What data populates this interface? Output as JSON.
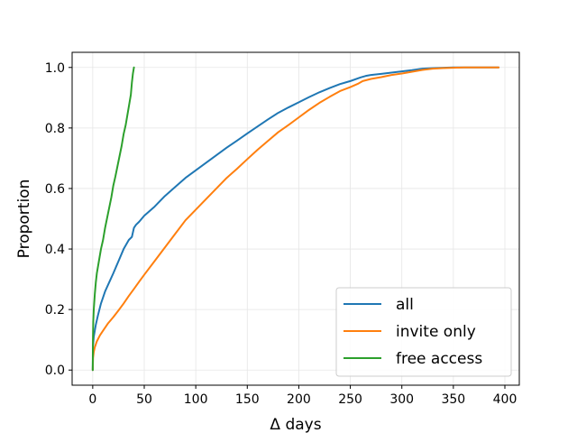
{
  "chart_data": {
    "type": "line",
    "title": "",
    "xlabel": "Δ days",
    "ylabel": "Proportion",
    "xlim": [
      -20,
      414
    ],
    "ylim": [
      -0.05,
      1.05
    ],
    "xticks": [
      0,
      50,
      100,
      150,
      200,
      250,
      300,
      350,
      400
    ],
    "yticks": [
      0.0,
      0.2,
      0.4,
      0.6,
      0.8,
      1.0
    ],
    "grid": true,
    "legend_position": "bottom-right",
    "series": [
      {
        "name": "all",
        "color": "#1f77b4",
        "x": [
          0,
          0.3,
          1,
          2,
          3,
          5,
          8,
          12,
          16,
          20,
          25,
          30,
          35,
          38,
          40,
          42,
          45,
          50,
          60,
          70,
          80,
          90,
          100,
          110,
          120,
          130,
          140,
          150,
          160,
          170,
          180,
          190,
          200,
          210,
          220,
          230,
          240,
          250,
          260,
          265,
          270,
          280,
          290,
          300,
          310,
          320,
          330,
          340,
          350,
          360,
          370,
          380,
          390,
          394
        ],
        "y": [
          0.0,
          0.08,
          0.11,
          0.13,
          0.15,
          0.18,
          0.22,
          0.26,
          0.29,
          0.32,
          0.36,
          0.4,
          0.43,
          0.44,
          0.47,
          0.48,
          0.49,
          0.51,
          0.54,
          0.575,
          0.605,
          0.635,
          0.66,
          0.685,
          0.71,
          0.735,
          0.758,
          0.782,
          0.805,
          0.828,
          0.85,
          0.868,
          0.885,
          0.902,
          0.918,
          0.932,
          0.945,
          0.955,
          0.967,
          0.972,
          0.975,
          0.979,
          0.983,
          0.987,
          0.991,
          0.996,
          0.998,
          0.999,
          1.0,
          1.0,
          1.0,
          1.0,
          1.0,
          1.0
        ]
      },
      {
        "name": "invite only",
        "color": "#ff7f0e",
        "x": [
          0,
          0.3,
          1,
          2,
          4,
          7,
          10,
          15,
          20,
          25,
          30,
          35,
          40,
          45,
          50,
          60,
          70,
          80,
          90,
          100,
          110,
          120,
          130,
          140,
          150,
          160,
          170,
          180,
          190,
          200,
          210,
          220,
          230,
          240,
          250,
          258,
          262,
          270,
          280,
          290,
          300,
          310,
          320,
          330,
          340,
          350,
          360,
          370,
          380,
          390,
          394
        ],
        "y": [
          0.0,
          0.04,
          0.06,
          0.075,
          0.095,
          0.115,
          0.13,
          0.155,
          0.175,
          0.197,
          0.22,
          0.245,
          0.268,
          0.292,
          0.315,
          0.36,
          0.405,
          0.45,
          0.495,
          0.53,
          0.565,
          0.6,
          0.635,
          0.665,
          0.697,
          0.728,
          0.757,
          0.786,
          0.81,
          0.835,
          0.86,
          0.883,
          0.903,
          0.922,
          0.935,
          0.947,
          0.955,
          0.962,
          0.968,
          0.975,
          0.98,
          0.986,
          0.992,
          0.996,
          0.998,
          0.999,
          1.0,
          1.0,
          1.0,
          1.0,
          1.0
        ]
      },
      {
        "name": "free access",
        "color": "#2ca02c",
        "x": [
          0,
          0.2,
          0.5,
          1,
          2,
          3,
          4,
          6,
          8,
          10,
          12,
          15,
          18,
          20,
          22,
          25,
          28,
          30,
          32,
          35,
          37,
          38,
          39,
          40
        ],
        "y": [
          0.0,
          0.1,
          0.16,
          0.2,
          0.25,
          0.29,
          0.32,
          0.36,
          0.4,
          0.43,
          0.47,
          0.52,
          0.57,
          0.61,
          0.64,
          0.69,
          0.74,
          0.78,
          0.81,
          0.87,
          0.91,
          0.95,
          0.98,
          1.0
        ]
      }
    ]
  }
}
